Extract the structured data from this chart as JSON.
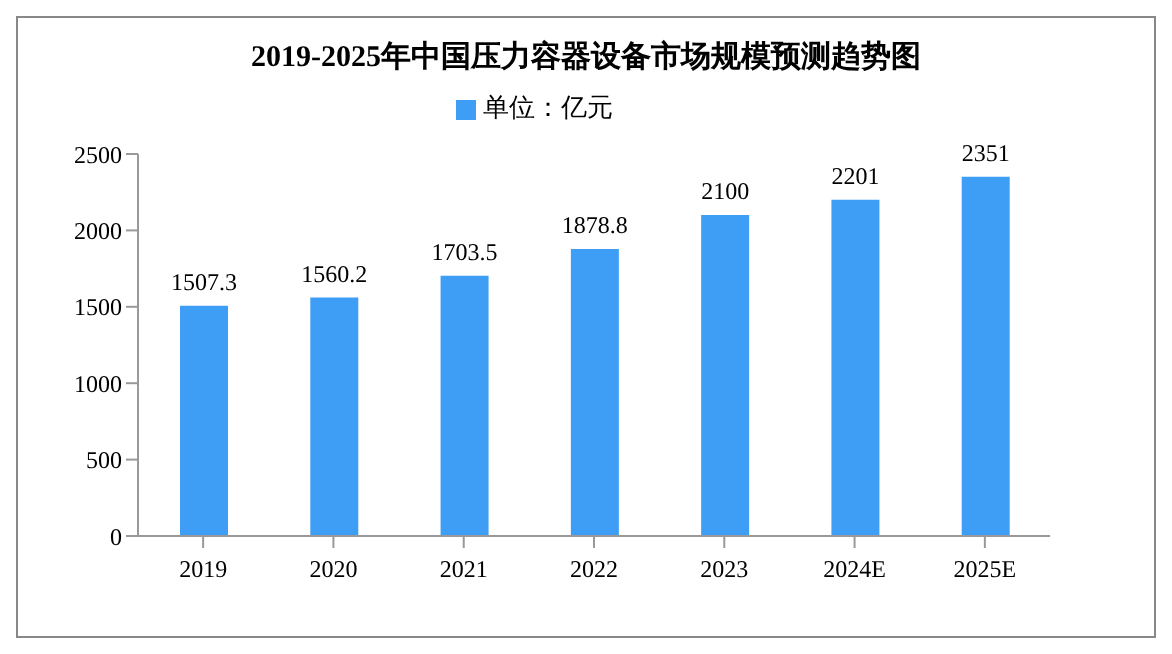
{
  "chart_data": {
    "type": "bar",
    "title": "2019-2025年中国压力容器设备市场规模预测趋势图",
    "categories": [
      "2019",
      "2020",
      "2021",
      "2022",
      "2023",
      "2024E",
      "2025E"
    ],
    "series": [
      {
        "name": "单位：亿元",
        "color": "#3e9ef5",
        "values": [
          1507.3,
          1560.2,
          1703.5,
          1878.8,
          2100,
          2201,
          2351
        ]
      }
    ],
    "ylim": [
      0,
      2500
    ],
    "yticks": [
      0,
      500,
      1000,
      1500,
      2000,
      2500
    ],
    "grid": false,
    "legend": "top",
    "data_labels": true
  }
}
